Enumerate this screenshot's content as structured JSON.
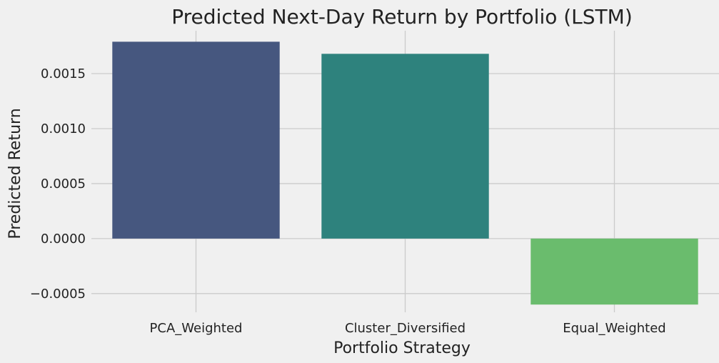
{
  "chart_data": {
    "type": "bar",
    "title": "Predicted Next-Day Return by Portfolio (LSTM)",
    "xlabel": "Portfolio Strategy",
    "ylabel": "Predicted Return",
    "categories": [
      "PCA_Weighted",
      "Cluster_Diversified",
      "Equal_Weighted"
    ],
    "values": [
      0.00179,
      0.00168,
      -0.0006
    ],
    "colors": [
      "#46577f",
      "#2e827d",
      "#6abc6d"
    ],
    "ylim": [
      -0.00067,
      0.00189
    ],
    "yticks": [
      -0.0005,
      0.0,
      0.0005,
      0.001,
      0.0015
    ],
    "ytick_labels": [
      "−0.0005",
      "0.0000",
      "0.0005",
      "0.0010",
      "0.0015"
    ],
    "grid": true,
    "legend": "none"
  }
}
